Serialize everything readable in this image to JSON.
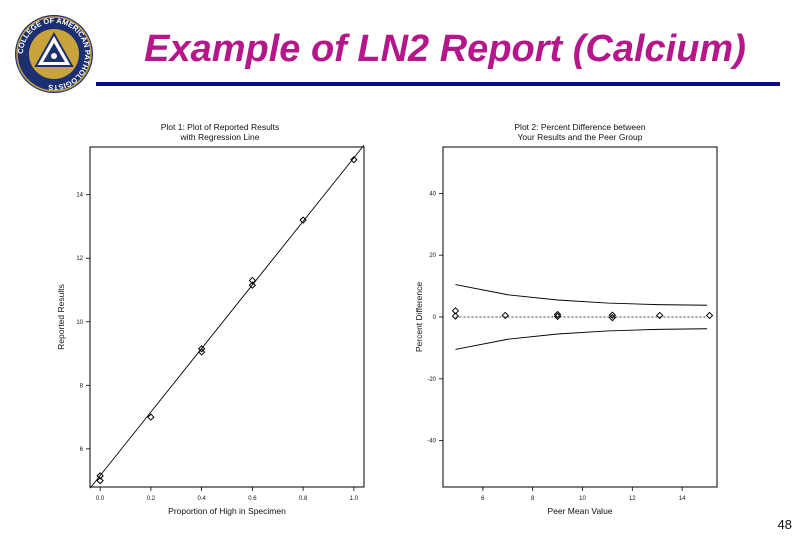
{
  "slide": {
    "title": "Example of LN2 Report (Calcium)",
    "page_number": "48",
    "logo_text": "COLLEGE OF AMERICAN PATHOLOGISTS"
  },
  "chart_data": [
    {
      "type": "scatter",
      "title": "Plot 1:  Plot of Reported Results",
      "subtitle": "with Regression Line",
      "xlabel": "Proportion of High in Specimen",
      "ylabel": "Reported Results",
      "xlim": [
        -0.04,
        1.04
      ],
      "ylim": [
        4.8,
        15.5
      ],
      "xticks": [
        0.0,
        0.2,
        0.4,
        0.6,
        0.8,
        1.0
      ],
      "xticklabels": [
        "0.0",
        "0.2",
        "0.4",
        "0.6",
        "0.8",
        "1.0"
      ],
      "yticks": [
        6,
        8,
        10,
        12,
        14
      ],
      "yticklabels": [
        "6",
        "8",
        "10",
        "12",
        "14"
      ],
      "grid": false,
      "regression_line": {
        "x": [
          -0.04,
          1.04
        ],
        "y": [
          4.76,
          15.56
        ]
      },
      "points": [
        {
          "x": 0.0,
          "y": 5.0
        },
        {
          "x": 0.0,
          "y": 5.15
        },
        {
          "x": 0.2,
          "y": 7.0
        },
        {
          "x": 0.4,
          "y": 9.05
        },
        {
          "x": 0.4,
          "y": 9.15
        },
        {
          "x": 0.6,
          "y": 11.15
        },
        {
          "x": 0.6,
          "y": 11.3
        },
        {
          "x": 0.8,
          "y": 13.2
        },
        {
          "x": 1.0,
          "y": 15.1
        }
      ]
    },
    {
      "type": "scatter",
      "title": "Plot 2:  Percent Difference between",
      "subtitle": "Your Results and the Peer Group",
      "xlabel": "Peer Mean Value",
      "ylabel": "Percent Difference",
      "xlim": [
        4.4,
        15.4
      ],
      "ylim": [
        -55,
        55
      ],
      "xticks": [
        6,
        8,
        10,
        12,
        14
      ],
      "xticklabels": [
        "6",
        "8",
        "10",
        "12",
        "14"
      ],
      "yticks": [
        -40,
        -20,
        0,
        20,
        40
      ],
      "yticklabels": [
        "-40",
        "-20",
        "0",
        "20",
        "40"
      ],
      "grid": false,
      "reference_line": 0,
      "upper_limit": {
        "x": [
          4.9,
          7.0,
          9.0,
          11.0,
          13.0,
          15.0
        ],
        "y": [
          10.5,
          7.2,
          5.5,
          4.5,
          4.0,
          3.8
        ]
      },
      "lower_limit": {
        "x": [
          4.9,
          7.0,
          9.0,
          11.0,
          13.0,
          15.0
        ],
        "y": [
          -10.5,
          -7.2,
          -5.5,
          -4.5,
          -4.0,
          -3.8
        ]
      },
      "points": [
        {
          "x": 4.9,
          "y": 2.0
        },
        {
          "x": 4.9,
          "y": 0.3
        },
        {
          "x": 6.9,
          "y": 0.5
        },
        {
          "x": 9.0,
          "y": 0.8
        },
        {
          "x": 9.0,
          "y": 0.2
        },
        {
          "x": 11.2,
          "y": 0.6
        },
        {
          "x": 11.2,
          "y": -0.2
        },
        {
          "x": 13.1,
          "y": 0.5
        },
        {
          "x": 15.1,
          "y": 0.5
        }
      ]
    }
  ]
}
